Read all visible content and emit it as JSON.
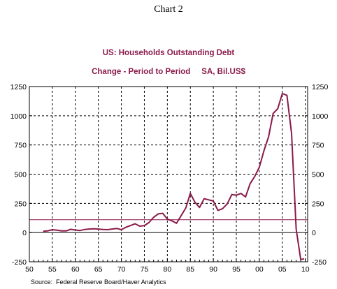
{
  "heading": "Chart 2",
  "colors": {
    "series": "#8b1a4a",
    "title": "#8b1a4a",
    "reference_line": "#8b1a4a",
    "zero_line": "#000000",
    "grid": "#000000"
  },
  "chart_data": {
    "type": "line",
    "title": "US: Households Outstanding Debt",
    "subtitle": "Change - Period to Period     SA, Bil.US$",
    "source": "Source:  Federal Reserve Board/Haver Analytics",
    "xlabel": "",
    "ylabel": "",
    "xlim": [
      1950,
      2010.5
    ],
    "ylim": [
      -250,
      1250
    ],
    "x_ticks": [
      1950,
      1955,
      1960,
      1965,
      1970,
      1975,
      1980,
      1985,
      1990,
      1995,
      2000,
      2005,
      2010
    ],
    "x_tick_labels": [
      "50",
      "55",
      "60",
      "65",
      "70",
      "75",
      "80",
      "85",
      "90",
      "95",
      "00",
      "05",
      "10"
    ],
    "y_ticks": [
      -250,
      0,
      250,
      500,
      750,
      1000,
      1250
    ],
    "y_tick_labels": [
      "-250",
      "0",
      "250",
      "500",
      "750",
      "1000",
      "1250"
    ],
    "grid": "dashed vertical and horizontal",
    "reference_line": 110,
    "zero_line": 0,
    "series": [
      {
        "x": [
          1953,
          1954,
          1955,
          1956,
          1957,
          1958,
          1959,
          1960,
          1961,
          1962,
          1963,
          1964,
          1965,
          1966,
          1967,
          1968,
          1969,
          1970,
          1971,
          1972,
          1973,
          1974,
          1975,
          1976,
          1977,
          1978,
          1979,
          1980,
          1981,
          1982,
          1983,
          1984,
          1985,
          1986,
          1987,
          1988,
          1989,
          1990,
          1991,
          1992,
          1993,
          1994,
          1995,
          1996,
          1997,
          1998,
          1999,
          2000,
          2001,
          2002,
          2003,
          2004,
          2005,
          2006,
          2007,
          2008,
          2009,
          2009.75
        ],
        "y": [
          12,
          15,
          25,
          20,
          15,
          14,
          28,
          22,
          18,
          26,
          30,
          32,
          30,
          26,
          25,
          30,
          35,
          25,
          45,
          60,
          75,
          55,
          60,
          85,
          130,
          160,
          165,
          115,
          100,
          80,
          145,
          210,
          335,
          260,
          215,
          290,
          280,
          270,
          190,
          205,
          245,
          325,
          320,
          335,
          305,
          420,
          480,
          560,
          700,
          820,
          1020,
          1060,
          1190,
          1175,
          850,
          30,
          -230,
          -225
        ]
      }
    ]
  }
}
